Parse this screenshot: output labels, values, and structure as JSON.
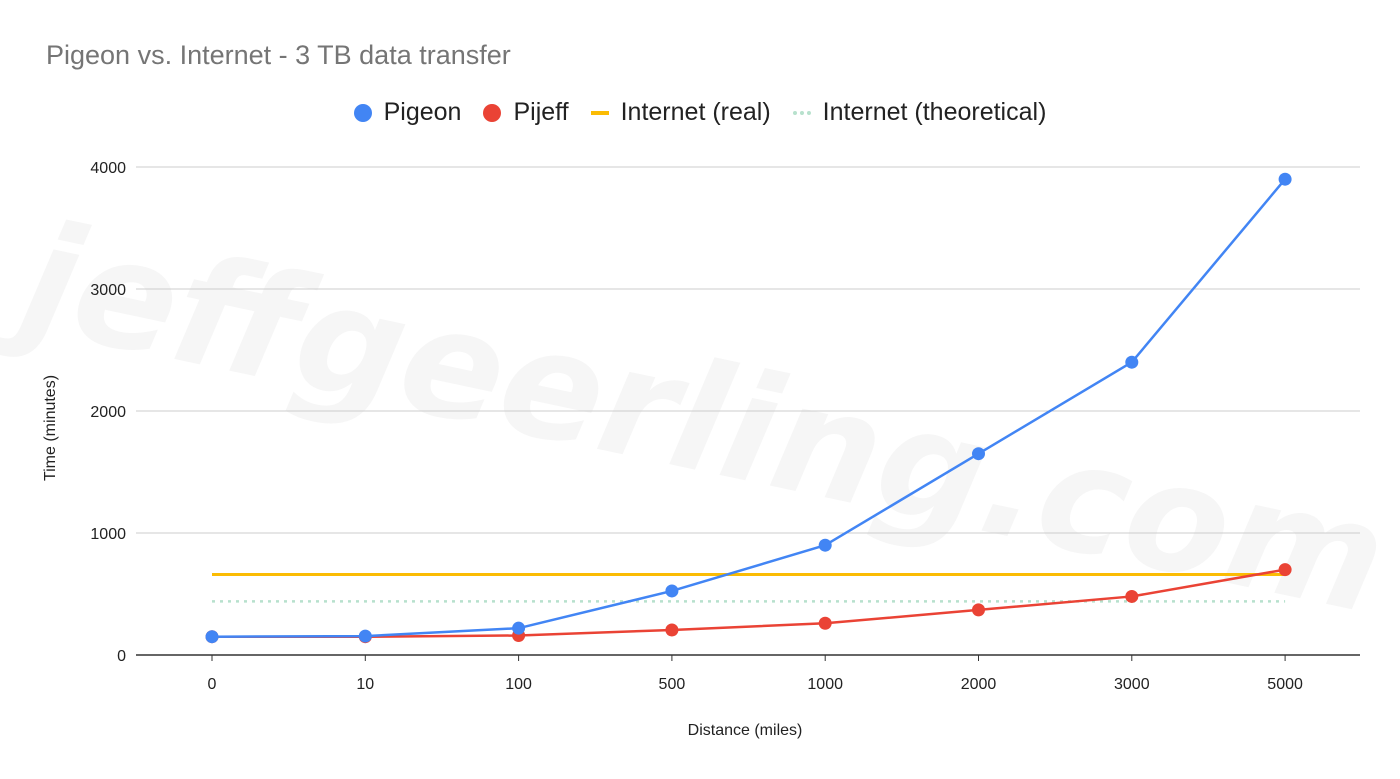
{
  "chart_data": {
    "type": "line",
    "title": "Pigeon vs. Internet - 3 TB data transfer",
    "xlabel": "Distance (miles)",
    "ylabel": "Time (minutes)",
    "categories": [
      "0",
      "10",
      "100",
      "500",
      "1000",
      "2000",
      "3000",
      "5000"
    ],
    "y_ticks": [
      "0",
      "1000",
      "2000",
      "3000",
      "4000"
    ],
    "ylim": [
      0,
      4000
    ],
    "grid": true,
    "legend_position": "top",
    "watermark": "jeffgeerling.com",
    "series": [
      {
        "name": "Pigeon",
        "style": "line-markers",
        "color": "#4285f4",
        "values": [
          150,
          155,
          220,
          525,
          900,
          1650,
          2400,
          3900
        ]
      },
      {
        "name": "Pijeff",
        "style": "line-markers",
        "color": "#ea4335",
        "values": [
          150,
          150,
          160,
          205,
          260,
          370,
          480,
          700
        ]
      },
      {
        "name": "Internet (real)",
        "style": "line",
        "color": "#fbbc04",
        "values": [
          660,
          660,
          660,
          660,
          660,
          660,
          660,
          660
        ]
      },
      {
        "name": "Internet (theoretical)",
        "style": "dotted",
        "color": "#b7e1cd",
        "values": [
          440,
          440,
          440,
          440,
          440,
          440,
          440,
          440
        ]
      }
    ]
  }
}
